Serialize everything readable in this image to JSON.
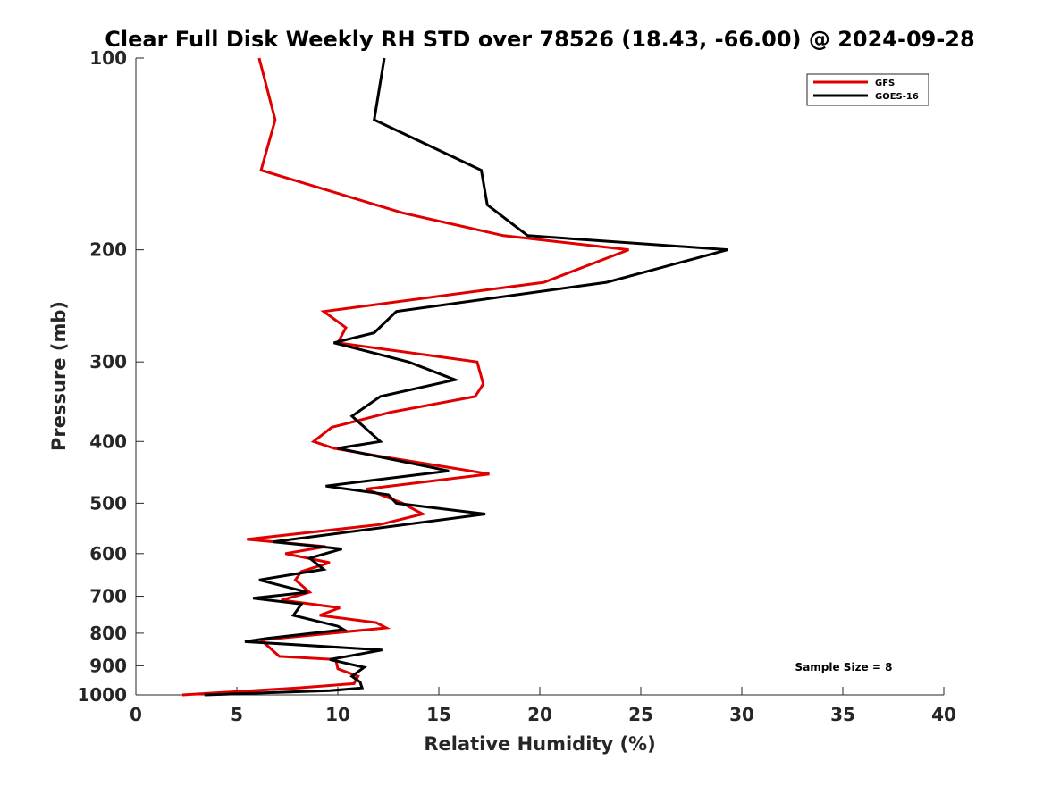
{
  "chart_data": {
    "type": "line",
    "title": "Clear Full Disk Weekly RH STD over 78526 (18.43, -66.00) @ 2024-09-28",
    "xlabel": "Relative Humidity (%)",
    "ylabel": "Pressure (mb)",
    "xlim": [
      0,
      40
    ],
    "ylim": [
      100,
      1000
    ],
    "y_scale": "log",
    "y_reversed": true,
    "xticks": [
      0,
      5,
      10,
      15,
      20,
      25,
      30,
      35,
      40
    ],
    "yticks": [
      100,
      200,
      300,
      400,
      500,
      600,
      700,
      800,
      900,
      1000
    ],
    "grid": false,
    "legend_position": "top-right",
    "annotation": "Sample Size = 8",
    "series": [
      {
        "name": "GFS",
        "color": "#e00000",
        "points": [
          [
            6.1,
            100
          ],
          [
            6.9,
            125
          ],
          [
            6.2,
            150
          ],
          [
            13.2,
            175
          ],
          [
            18.2,
            190
          ],
          [
            24.4,
            200
          ],
          [
            20.2,
            225
          ],
          [
            9.3,
            250
          ],
          [
            10.4,
            265
          ],
          [
            10.0,
            280
          ],
          [
            16.9,
            300
          ],
          [
            17.2,
            325
          ],
          [
            16.8,
            340
          ],
          [
            12.6,
            360
          ],
          [
            9.7,
            380
          ],
          [
            8.8,
            400
          ],
          [
            9.8,
            410
          ],
          [
            11.7,
            420
          ],
          [
            17.5,
            450
          ],
          [
            11.4,
            475
          ],
          [
            13.2,
            500
          ],
          [
            14.2,
            520
          ],
          [
            12.1,
            540
          ],
          [
            5.5,
            570
          ],
          [
            9.4,
            585
          ],
          [
            7.4,
            600
          ],
          [
            9.6,
            620
          ],
          [
            8.2,
            640
          ],
          [
            7.9,
            660
          ],
          [
            8.6,
            690
          ],
          [
            7.2,
            710
          ],
          [
            10.1,
            730
          ],
          [
            9.1,
            750
          ],
          [
            11.9,
            770
          ],
          [
            12.4,
            785
          ],
          [
            6.2,
            820
          ],
          [
            7.1,
            870
          ],
          [
            9.9,
            880
          ],
          [
            10.0,
            910
          ],
          [
            11.0,
            935
          ],
          [
            10.8,
            960
          ],
          [
            8.0,
            975
          ],
          [
            2.3,
            1000
          ]
        ]
      },
      {
        "name": "GOES-16",
        "color": "#000000",
        "points": [
          [
            12.3,
            100
          ],
          [
            11.8,
            125
          ],
          [
            17.1,
            150
          ],
          [
            17.4,
            170
          ],
          [
            19.4,
            190
          ],
          [
            29.3,
            200
          ],
          [
            23.3,
            225
          ],
          [
            12.9,
            250
          ],
          [
            11.8,
            270
          ],
          [
            9.8,
            280
          ],
          [
            13.5,
            300
          ],
          [
            15.8,
            320
          ],
          [
            12.1,
            340
          ],
          [
            10.7,
            365
          ],
          [
            12.1,
            400
          ],
          [
            10.0,
            410
          ],
          [
            15.5,
            445
          ],
          [
            9.4,
            470
          ],
          [
            12.5,
            485
          ],
          [
            12.9,
            500
          ],
          [
            17.3,
            520
          ],
          [
            6.8,
            575
          ],
          [
            10.2,
            590
          ],
          [
            8.6,
            610
          ],
          [
            9.3,
            635
          ],
          [
            6.1,
            660
          ],
          [
            8.5,
            690
          ],
          [
            5.8,
            705
          ],
          [
            8.2,
            720
          ],
          [
            7.8,
            750
          ],
          [
            10.0,
            780
          ],
          [
            10.3,
            790
          ],
          [
            6.5,
            815
          ],
          [
            5.4,
            825
          ],
          [
            12.2,
            850
          ],
          [
            9.6,
            880
          ],
          [
            11.3,
            905
          ],
          [
            10.7,
            935
          ],
          [
            11.1,
            955
          ],
          [
            11.2,
            975
          ],
          [
            9.6,
            985
          ],
          [
            3.4,
            1000
          ]
        ]
      }
    ]
  }
}
